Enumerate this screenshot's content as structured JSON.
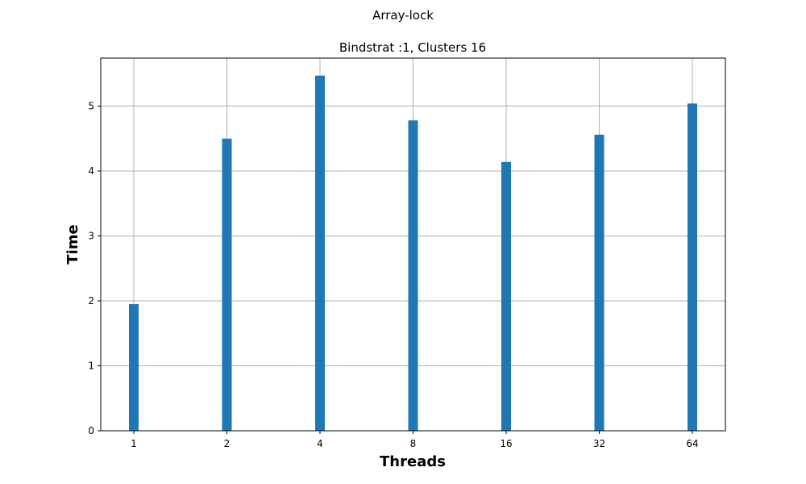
{
  "chart_data": {
    "type": "bar",
    "suptitle": "Array-lock",
    "title": "Bindstrat :1, Clusters 16",
    "xlabel": "Threads",
    "ylabel": "Time",
    "categories": [
      "1",
      "2",
      "4",
      "8",
      "16",
      "32",
      "64"
    ],
    "values": [
      1.95,
      4.5,
      5.47,
      4.78,
      4.14,
      4.56,
      5.04
    ],
    "ylim": [
      0,
      5.74
    ],
    "yticks": [
      0,
      1,
      2,
      3,
      4,
      5
    ],
    "ytick_labels": [
      "0",
      "1",
      "2",
      "3",
      "4",
      "5"
    ],
    "grid": true,
    "bar_color": "#1f77b4"
  }
}
